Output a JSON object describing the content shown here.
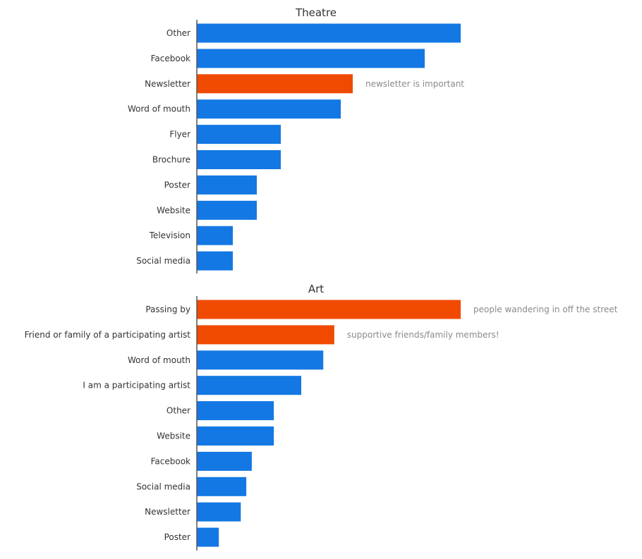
{
  "colors": {
    "default": "#1378e3",
    "highlight": "#f04a00",
    "annotation": "#8a8a8a",
    "axis": "#555555",
    "text": "#333333"
  },
  "chart_data": [
    {
      "type": "bar",
      "orientation": "horizontal",
      "title": "Theatre",
      "categories": [
        "Other",
        "Facebook",
        "Newsletter",
        "Word of mouth",
        "Flyer",
        "Brochure",
        "Poster",
        "Website",
        "Television",
        "Social media"
      ],
      "values": [
        22,
        19,
        13,
        12,
        7,
        7,
        5,
        5,
        3,
        3
      ],
      "highlight": [
        "Newsletter"
      ],
      "annotations": [
        {
          "category": "Newsletter",
          "text": "newsletter is important"
        }
      ],
      "xlim": [
        0,
        22
      ],
      "grid": false,
      "xaxis_visible": false
    },
    {
      "type": "bar",
      "orientation": "horizontal",
      "title": "Art",
      "categories": [
        "Passing by",
        "Friend or family of a participating artist",
        "Word of mouth",
        "I am a participating artist",
        "Other",
        "Website",
        "Facebook",
        "Social media",
        "Newsletter",
        "Poster"
      ],
      "values": [
        48,
        25,
        23,
        19,
        14,
        14,
        10,
        9,
        8,
        4
      ],
      "highlight": [
        "Passing by",
        "Friend or family of a participating artist"
      ],
      "annotations": [
        {
          "category": "Passing by",
          "text": "people wandering in off the street"
        },
        {
          "category": "Friend or family of a participating artist",
          "text": "supportive friends/family members!"
        }
      ],
      "xlim": [
        0,
        48
      ],
      "grid": false,
      "xaxis_visible": false
    }
  ]
}
